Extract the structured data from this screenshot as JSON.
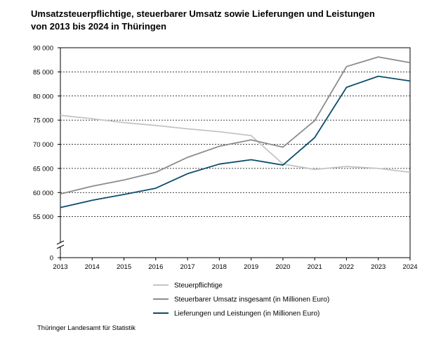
{
  "chart_data": {
    "type": "line",
    "title": "Umsatzsteuerpflichtige, steuerbarer Umsatz sowie Lieferungen und Leistungen",
    "subtitle": "von 2013 bis 2024 in Thüringen",
    "x": [
      "2013",
      "2014",
      "2015",
      "2016",
      "2017",
      "2018",
      "2019",
      "2020",
      "2021",
      "2022",
      "2023",
      "2024"
    ],
    "y_ticks": [
      "0",
      "55 000",
      "60 000",
      "65 000",
      "70 000",
      "75 000",
      "80 000",
      "85 000",
      "90 000"
    ],
    "ylim": [
      50000,
      90000
    ],
    "axis_break": true,
    "grid": true,
    "legend_position": "bottom",
    "series": [
      {
        "name": "Steuerpflichtige",
        "color": "#c4c4c4",
        "values": [
          76000,
          75300,
          74500,
          73900,
          73200,
          72600,
          71800,
          65900,
          64800,
          65400,
          65000,
          64200
        ]
      },
      {
        "name": "Steuerbarer Umsatz insgesamt (in Millionen Euro)",
        "color": "#8c8c8c",
        "values": [
          59700,
          61300,
          62600,
          64200,
          67300,
          69600,
          70900,
          69400,
          74900,
          86100,
          88100,
          86900
        ]
      },
      {
        "name": "Lieferungen und Leistungen (in Millionen Euro)",
        "color": "#0b4d6e",
        "values": [
          56900,
          58400,
          59600,
          60900,
          63900,
          65900,
          66800,
          65700,
          71400,
          81800,
          84100,
          83100
        ]
      }
    ]
  },
  "source": "Thüringer Landesamt für Statistik"
}
